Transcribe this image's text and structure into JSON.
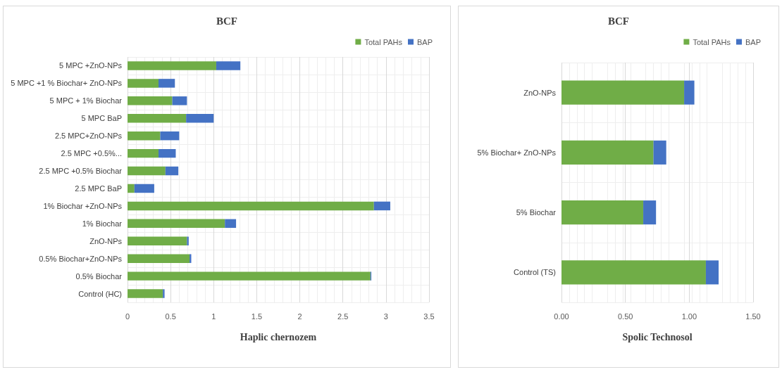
{
  "chart_data": [
    {
      "type": "bar",
      "orientation": "horizontal",
      "stacked": true,
      "title": "BCF",
      "xlabel": "Haplic chernozem",
      "legend": "top right",
      "grid": true,
      "categories": [
        "5 MPC +ZnO-NPs",
        "5 MPC +1 % Biochar+ ZnO-NPs",
        "5 MPC + 1% Biochar",
        "5 MPC BaP",
        "2.5 MPC+ZnO-NPs",
        "2.5 MPC +0.5%...",
        "2.5 MPC +0.5% Biochar",
        "2.5 MPC BaP",
        "1% Biochar +ZnO-NPs",
        "1% Biochar",
        "ZnO-NPs",
        "0.5% Biochar+ZnO-NPs",
        "0.5% Biochar",
        "Control (HC)"
      ],
      "series": [
        {
          "name": "Total PAHs",
          "color": "#70ad47",
          "values": [
            1.03,
            0.36,
            0.52,
            0.68,
            0.38,
            0.36,
            0.44,
            0.08,
            2.86,
            1.13,
            0.69,
            0.72,
            2.82,
            0.41
          ]
        },
        {
          "name": "BAP",
          "color": "#4472c4",
          "values": [
            0.28,
            0.19,
            0.17,
            0.32,
            0.22,
            0.2,
            0.15,
            0.23,
            0.19,
            0.13,
            0.02,
            0.02,
            0.01,
            0.02
          ]
        }
      ],
      "xlim": [
        0,
        3.5
      ],
      "xticks": [
        0,
        0.5,
        1,
        1.5,
        2,
        2.5,
        3,
        3.5
      ]
    },
    {
      "type": "bar",
      "orientation": "horizontal",
      "stacked": true,
      "title": "BCF",
      "xlabel": "Spolic Technosol",
      "legend": "top right",
      "grid": true,
      "categories": [
        "ZnO-NPs",
        "5% Biochar+ ZnO-NPs",
        "5% Biochar",
        "Control (TS)"
      ],
      "series": [
        {
          "name": "Total PAHs",
          "color": "#70ad47",
          "values": [
            0.96,
            0.72,
            0.64,
            1.13
          ]
        },
        {
          "name": "BAP",
          "color": "#4472c4",
          "values": [
            0.08,
            0.1,
            0.1,
            0.1
          ]
        }
      ],
      "xlim": [
        0,
        1.5
      ],
      "xticks": [
        {
          "value": 0,
          "label": "0.00"
        },
        {
          "value": 0.5,
          "label": "0.50"
        },
        {
          "value": 1,
          "label": "1.00"
        },
        {
          "value": 1.5,
          "label": "1.50"
        }
      ]
    }
  ]
}
